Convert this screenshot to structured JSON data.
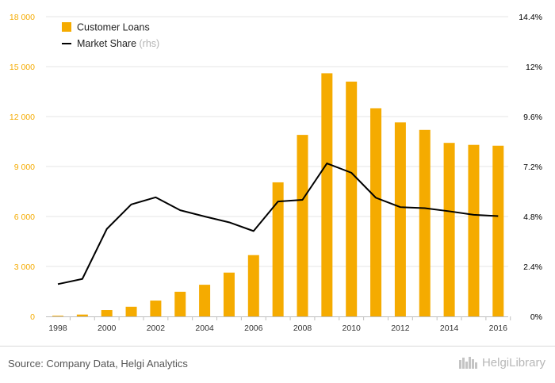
{
  "footer": {
    "source": "Source: Company Data, Helgi Analytics",
    "brand": "HelgiLibrary"
  },
  "colors": {
    "bars": "#f5ab00",
    "line": "#000000",
    "left_ticks": "#f5ab00",
    "right_ticks": "#000000",
    "grid": "#e6e6e6"
  },
  "chart_data": {
    "type": "bar",
    "x": [
      1998,
      1999,
      2000,
      2001,
      2002,
      2003,
      2004,
      2005,
      2006,
      2007,
      2008,
      2009,
      2010,
      2011,
      2012,
      2013,
      2014,
      2015,
      2016
    ],
    "x_tick_labels": [
      "1998",
      "2000",
      "2002",
      "2004",
      "2006",
      "2008",
      "2010",
      "2012",
      "2014",
      "2016"
    ],
    "y_left": {
      "ylim": [
        0,
        18000
      ],
      "ticks": [
        "0",
        "3 000",
        "6 000",
        "9 000",
        "12 000",
        "15 000",
        "18 000"
      ],
      "tick_values": [
        0,
        3000,
        6000,
        9000,
        12000,
        15000,
        18000
      ]
    },
    "y_right": {
      "ylim": [
        0,
        14.4
      ],
      "ticks": [
        "0%",
        "2.4%",
        "4.8%",
        "7.2%",
        "9.6%",
        "12%",
        "14.4%"
      ],
      "tick_values": [
        0,
        2.4,
        4.8,
        7.2,
        9.6,
        12,
        14.4
      ]
    },
    "series": [
      {
        "name": "Customer Loans",
        "kind": "bar",
        "axis": "left",
        "values": [
          40,
          110,
          380,
          580,
          950,
          1480,
          1900,
          2630,
          3680,
          8050,
          10900,
          14600,
          14100,
          12500,
          11650,
          11200,
          10420,
          10300,
          10250
        ]
      },
      {
        "name": "Market Share",
        "name_suffix": " (rhs)",
        "kind": "line",
        "axis": "right",
        "values": [
          1.55,
          1.8,
          4.2,
          5.38,
          5.72,
          5.1,
          4.8,
          4.52,
          4.1,
          5.52,
          5.6,
          7.35,
          6.9,
          5.7,
          5.25,
          5.2,
          5.05,
          4.88,
          4.82
        ]
      }
    ],
    "legend_position": "top-left",
    "grid": true
  }
}
